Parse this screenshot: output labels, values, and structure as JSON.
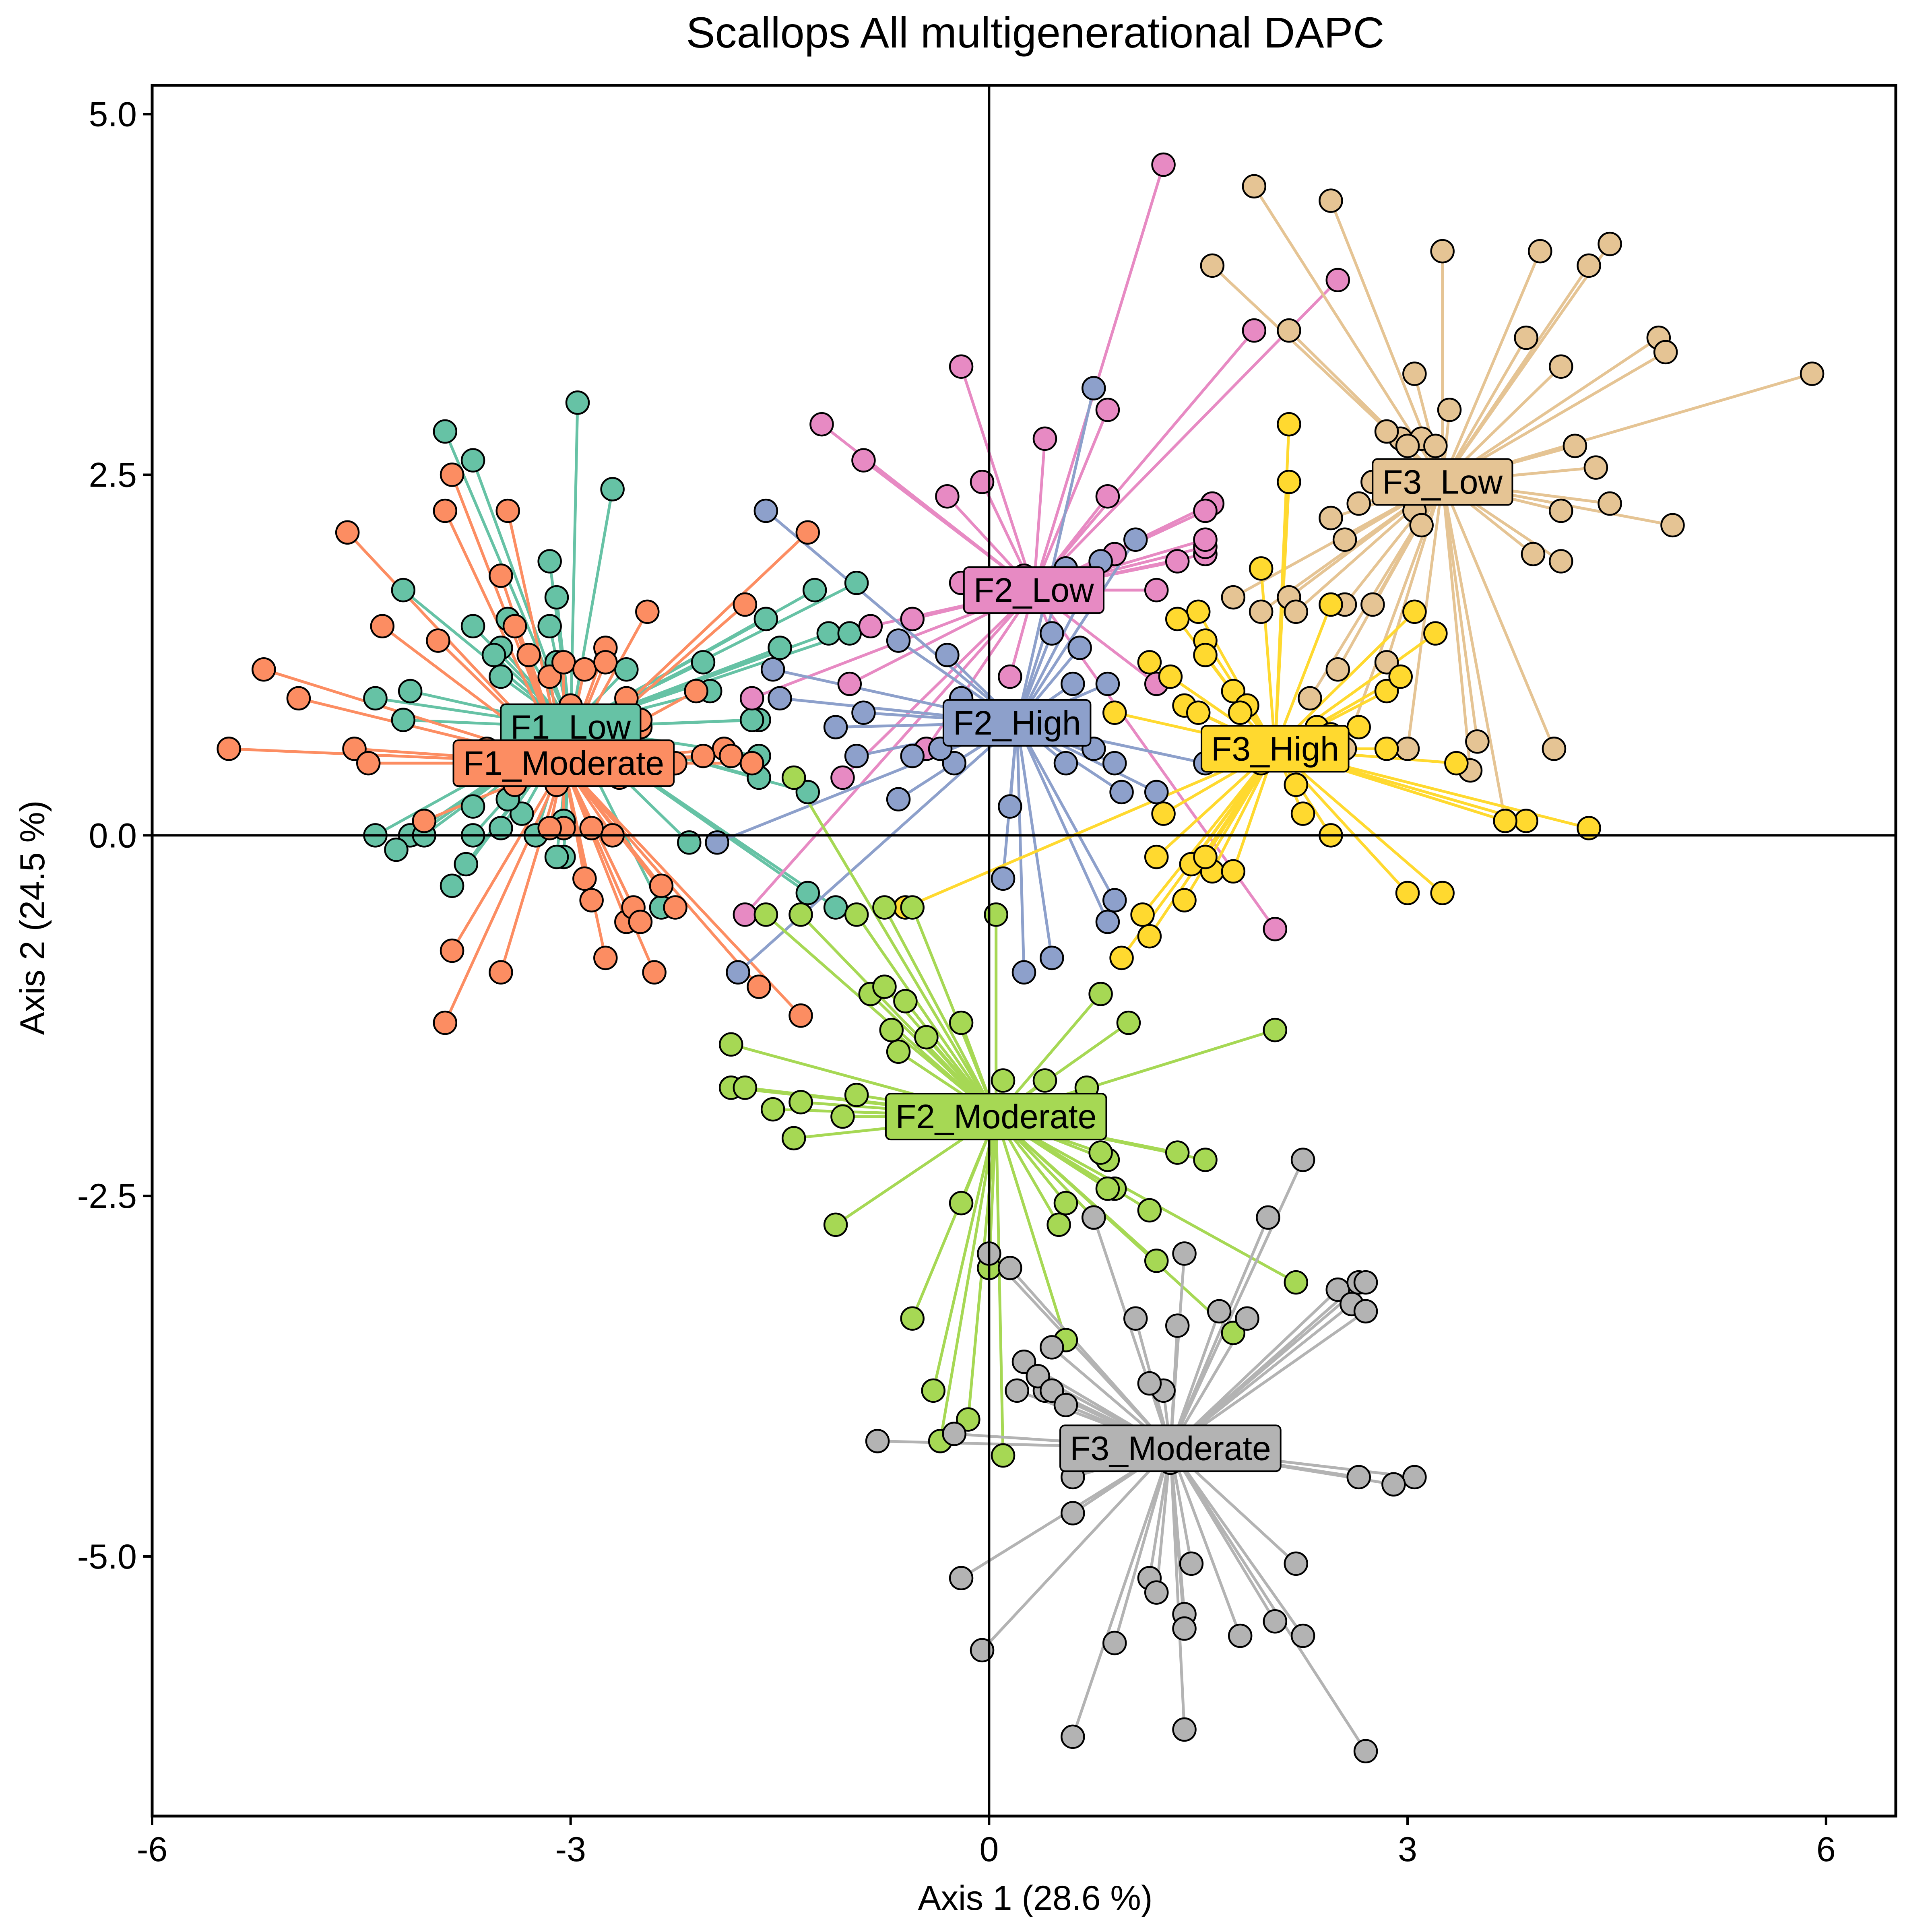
{
  "chart_data": {
    "type": "scatter",
    "title": "Scallops All multigenerational DAPC",
    "xlabel": "Axis 1 (28.6 %)",
    "ylabel": "Axis 2 (24.5 %)",
    "xlim": [
      -6.0,
      6.5
    ],
    "ylim": [
      -6.8,
      5.2
    ],
    "xticks": [
      -6,
      -3,
      0,
      3,
      6
    ],
    "xtick_labels": [
      "-6",
      "-3",
      "0",
      "3",
      "6"
    ],
    "yticks": [
      -5.0,
      -2.5,
      0.0,
      2.5,
      5.0
    ],
    "ytick_labels": [
      "-5.0",
      "-2.5",
      "0.0",
      "2.5",
      "5.0"
    ],
    "grid": false,
    "legend": "none",
    "zero_lines": true,
    "series": [
      {
        "name": "F1_Low",
        "color": "#66C2A5",
        "centroid": [
          -3.0,
          0.75
        ],
        "x": [
          -2.95,
          -3.9,
          -3.7,
          -2.7,
          -3.15,
          -3.7,
          -4.2,
          -2.6,
          -3.45,
          -3.1,
          -3.15,
          -3.1,
          -1.6,
          -1.25,
          -1.15,
          -0.95,
          -1.0,
          -1.5,
          -1.65,
          -3.5,
          -3.55,
          -3.5,
          -3.4,
          -4.4,
          -4.15,
          -4.2,
          -3.7,
          -3.35,
          -3.5,
          -3.05,
          -1.65,
          -1.65,
          -1.7,
          -2.05,
          -2.0,
          -1.3,
          -4.15,
          -4.25,
          -4.4,
          -4.05,
          -3.85,
          -3.75,
          -3.7,
          -3.25,
          -3.1,
          -3.45,
          -3.05,
          -2.15,
          -3.1,
          -2.35,
          -1.3,
          -1.1
        ],
        "y": [
          3.0,
          2.8,
          2.6,
          2.4,
          1.9,
          1.45,
          1.7,
          1.15,
          1.5,
          1.65,
          1.45,
          1.2,
          1.5,
          1.7,
          1.4,
          1.75,
          1.4,
          1.3,
          0.8,
          1.3,
          1.25,
          1.1,
          0.75,
          0.95,
          1.0,
          0.8,
          0.2,
          0.15,
          0.05,
          -0.15,
          0.4,
          0.55,
          0.8,
          1.2,
          1.0,
          0.3,
          0.0,
          -0.1,
          0.0,
          0.0,
          -0.35,
          -0.2,
          0.0,
          0.0,
          -0.15,
          0.25,
          0.1,
          -0.05,
          0.35,
          -0.5,
          -0.4,
          -0.5
        ]
      },
      {
        "name": "F1_Moderate",
        "color": "#FC8D62",
        "centroid": [
          -3.05,
          0.5
        ],
        "x": [
          -5.45,
          -5.2,
          -4.95,
          -4.6,
          -4.55,
          -4.45,
          -4.35,
          -3.85,
          -3.9,
          -3.5,
          -3.45,
          -3.4,
          -3.3,
          -3.15,
          -3.05,
          -3.0,
          -2.9,
          -2.75,
          -2.75,
          -2.45,
          -1.75,
          -1.3,
          -2.1,
          -1.9,
          -1.85,
          -1.7,
          -2.25,
          -2.5,
          -3.95,
          -4.05,
          -3.85,
          -3.9,
          -3.5,
          -3.05,
          -3.15,
          -2.9,
          -2.75,
          -2.6,
          -2.55,
          -2.4,
          -2.35,
          -1.65,
          -1.35,
          -2.05,
          -2.5,
          -2.6,
          -2.65,
          -2.25,
          -3.3,
          -3.4,
          -3.1,
          -3.35,
          -3.6,
          -2.7,
          -2.85,
          -2.5,
          -2.85
        ],
        "y": [
          0.6,
          1.15,
          0.95,
          2.1,
          0.6,
          0.5,
          1.45,
          2.5,
          2.25,
          1.8,
          2.25,
          1.45,
          1.25,
          1.1,
          1.2,
          0.9,
          1.15,
          1.3,
          1.2,
          1.55,
          1.6,
          2.1,
          1.0,
          0.6,
          0.55,
          0.5,
          -0.5,
          0.75,
          1.35,
          0.1,
          -0.8,
          -1.3,
          -0.95,
          0.05,
          0.05,
          -0.3,
          -0.85,
          -0.6,
          -0.5,
          -0.95,
          -0.35,
          -1.05,
          -1.25,
          0.55,
          0.8,
          0.95,
          0.4,
          0.5,
          0.75,
          0.35,
          0.35,
          0.5,
          0.6,
          0.0,
          -0.45,
          -0.6,
          0.05
        ]
      },
      {
        "name": "F2_Low",
        "color": "#E78AC3",
        "centroid": [
          0.32,
          1.7
        ],
        "x": [
          1.25,
          -0.2,
          -1.2,
          -0.9,
          0.4,
          0.85,
          0.85,
          0.9,
          1.2,
          1.55,
          1.9,
          2.5,
          -0.05,
          -0.3,
          -0.55,
          -0.85,
          -1.0,
          -1.7,
          -0.2,
          0.25,
          0.3,
          0.45,
          0.55,
          1.35,
          1.55,
          1.6,
          1.55,
          1.55,
          0.15,
          0.45,
          -0.45,
          -1.05,
          -1.75,
          2.05,
          1.2
        ],
        "y": [
          4.65,
          3.25,
          2.85,
          2.6,
          2.75,
          2.95,
          2.35,
          1.95,
          1.7,
          1.95,
          3.5,
          3.85,
          2.45,
          2.35,
          1.5,
          1.45,
          1.05,
          0.95,
          1.75,
          1.8,
          1.75,
          1.75,
          1.85,
          1.9,
          2.0,
          2.3,
          2.25,
          2.05,
          1.1,
          1.4,
          0.6,
          0.4,
          -0.55,
          -0.65,
          1.05
        ]
      },
      {
        "name": "F2_High",
        "color": "#8DA0CB",
        "centroid": [
          0.2,
          0.78
        ],
        "x": [
          0.75,
          -1.6,
          -0.65,
          -0.3,
          -0.2,
          0.05,
          0.6,
          0.85,
          1.05,
          0.8,
          0.55,
          0.75,
          0.9,
          0.95,
          1.2,
          1.55,
          -0.25,
          0.1,
          0.25,
          0.45,
          0.85,
          0.55,
          0.9,
          0.15,
          0.65,
          0.45,
          -0.65,
          -0.9,
          -1.5,
          -1.8,
          -1.95,
          -1.55,
          -1.1,
          -0.95,
          -0.55,
          -0.35
        ],
        "y": [
          3.1,
          2.25,
          1.35,
          1.25,
          0.95,
          0.85,
          1.05,
          1.05,
          2.05,
          1.9,
          1.85,
          0.6,
          0.5,
          0.3,
          0.3,
          0.5,
          0.5,
          -0.3,
          -0.95,
          -0.85,
          -0.6,
          0.5,
          -0.45,
          0.2,
          1.3,
          1.4,
          0.25,
          0.85,
          0.95,
          -0.95,
          -0.05,
          1.15,
          0.75,
          0.55,
          0.55,
          0.6
        ]
      },
      {
        "name": "F3_Low",
        "color": "#E5C494",
        "centroid": [
          3.25,
          2.45
        ],
        "x": [
          1.9,
          2.45,
          3.25,
          3.95,
          4.45,
          4.3,
          5.9,
          4.8,
          4.85,
          3.85,
          4.1,
          4.2,
          4.35,
          4.45,
          4.1,
          4.9,
          4.1,
          3.9,
          4.05,
          3.7,
          3.5,
          3.45,
          3.1,
          3.3,
          3.05,
          2.95,
          2.85,
          2.75,
          2.65,
          2.55,
          2.45,
          2.5,
          2.15,
          2.2,
          2.3,
          2.55,
          3.0,
          1.6,
          2.15,
          3.05,
          3.1,
          2.75,
          2.85,
          3.2,
          3.0,
          1.95,
          1.75,
          2.55
        ],
        "y": [
          4.5,
          4.4,
          4.05,
          4.05,
          4.1,
          3.95,
          3.2,
          3.45,
          3.35,
          3.45,
          3.25,
          2.7,
          2.55,
          2.3,
          2.25,
          2.15,
          1.9,
          1.95,
          0.6,
          0.1,
          0.65,
          0.45,
          2.75,
          2.95,
          3.2,
          2.75,
          2.8,
          2.45,
          2.3,
          2.05,
          2.2,
          1.15,
          1.65,
          1.55,
          0.95,
          0.6,
          0.6,
          3.95,
          3.5,
          2.25,
          2.15,
          1.6,
          1.2,
          2.7,
          2.7,
          1.55,
          1.65,
          1.6
        ]
      },
      {
        "name": "F3_High",
        "color": "#FFD92F",
        "centroid": [
          2.05,
          0.6
        ],
        "x": [
          2.15,
          2.15,
          1.95,
          2.45,
          2.85,
          2.95,
          3.05,
          3.2,
          3.35,
          4.3,
          3.85,
          3.7,
          3.25,
          3.0,
          2.65,
          2.85,
          2.35,
          2.45,
          1.55,
          1.5,
          1.35,
          1.15,
          1.4,
          1.5,
          1.55,
          1.75,
          1.85,
          1.8,
          1.6,
          1.4,
          1.45,
          1.75,
          0.95,
          1.15,
          1.55,
          1.2,
          1.1,
          1.25,
          1.3,
          1.95,
          2.2,
          2.25,
          2.45,
          0.9,
          -0.6
        ],
        "y": [
          2.85,
          2.45,
          1.85,
          1.6,
          1.0,
          1.1,
          1.55,
          1.4,
          0.5,
          0.05,
          0.1,
          0.1,
          -0.4,
          -0.4,
          0.75,
          0.6,
          0.75,
          0.7,
          1.35,
          1.55,
          1.5,
          1.2,
          0.9,
          0.85,
          1.25,
          1.0,
          0.9,
          0.85,
          -0.25,
          -0.45,
          -0.2,
          -0.25,
          -0.85,
          -0.7,
          -0.15,
          -0.15,
          -0.55,
          0.15,
          1.1,
          0.5,
          0.35,
          0.15,
          0.0,
          0.85,
          -0.5
        ]
      },
      {
        "name": "F2_Moderate",
        "color": "#A6D854",
        "centroid": [
          0.05,
          -1.95
        ],
        "x": [
          -1.4,
          -1.6,
          -1.35,
          -0.95,
          -0.85,
          -0.75,
          -0.6,
          -0.7,
          -0.65,
          -0.95,
          -1.85,
          -1.85,
          -1.75,
          -1.35,
          -1.55,
          -1.4,
          -0.55,
          -0.75,
          -0.45,
          -0.2,
          0.05,
          0.1,
          -1.05,
          -1.1,
          0.0,
          -0.55,
          0.4,
          0.7,
          0.8,
          1.0,
          0.85,
          0.9,
          1.15,
          1.35,
          1.55,
          2.05,
          2.2,
          0.55,
          0.75,
          0.8,
          0.5,
          0.55,
          1.2,
          1.75,
          0.85,
          -0.4,
          -0.2,
          -0.15,
          0.1,
          -0.35
        ],
        "y": [
          0.4,
          -0.55,
          -0.55,
          -0.55,
          -1.1,
          -1.05,
          -1.15,
          -1.35,
          -1.5,
          -1.8,
          -1.45,
          -1.75,
          -1.75,
          -1.85,
          -1.9,
          -2.1,
          -0.5,
          -0.5,
          -1.4,
          -1.3,
          -0.55,
          -1.7,
          -1.95,
          -2.7,
          -3.0,
          -3.35,
          -1.7,
          -1.75,
          -1.1,
          -1.3,
          -2.25,
          -2.45,
          -2.6,
          -2.2,
          -2.25,
          -1.35,
          -3.1,
          -2.55,
          -2.65,
          -2.2,
          -2.7,
          -3.5,
          -2.95,
          -3.45,
          -2.45,
          -3.85,
          -2.55,
          -4.05,
          -4.3,
          -4.2
        ]
      },
      {
        "name": "F3_Moderate",
        "color": "#B3B3B3",
        "centroid": [
          1.3,
          -4.25
        ],
        "x": [
          2.25,
          2.0,
          1.4,
          1.05,
          0.45,
          0.25,
          0.75,
          0.4,
          0.35,
          0.2,
          0.45,
          0.55,
          1.25,
          1.15,
          1.35,
          1.65,
          1.85,
          2.5,
          2.65,
          2.6,
          2.7,
          2.7,
          3.05,
          -0.8,
          -0.25,
          0.6,
          0.75,
          1.0,
          1.15,
          2.65,
          2.9,
          2.2,
          2.05,
          2.25,
          1.8,
          1.45,
          1.4,
          1.4,
          1.15,
          1.2,
          0.9,
          -0.2,
          -0.05,
          0.6,
          1.4,
          2.7,
          1.3,
          0.6,
          0.0,
          0.15
        ],
        "y": [
          -2.25,
          -2.65,
          -2.9,
          -3.35,
          -3.55,
          -3.65,
          -2.65,
          -3.85,
          -3.75,
          -3.85,
          -3.85,
          -3.95,
          -3.85,
          -3.8,
          -3.4,
          -3.3,
          -3.35,
          -3.15,
          -3.1,
          -3.25,
          -3.3,
          -3.1,
          -4.45,
          -4.2,
          -4.15,
          -4.7,
          -4.3,
          -4.3,
          -4.3,
          -4.45,
          -4.5,
          -5.05,
          -5.45,
          -5.55,
          -5.55,
          -5.05,
          -5.4,
          -5.5,
          -5.15,
          -5.25,
          -5.6,
          -5.15,
          -5.65,
          -6.25,
          -6.2,
          -6.35,
          -4.35,
          -4.45,
          -2.9,
          -3.0
        ]
      }
    ]
  }
}
